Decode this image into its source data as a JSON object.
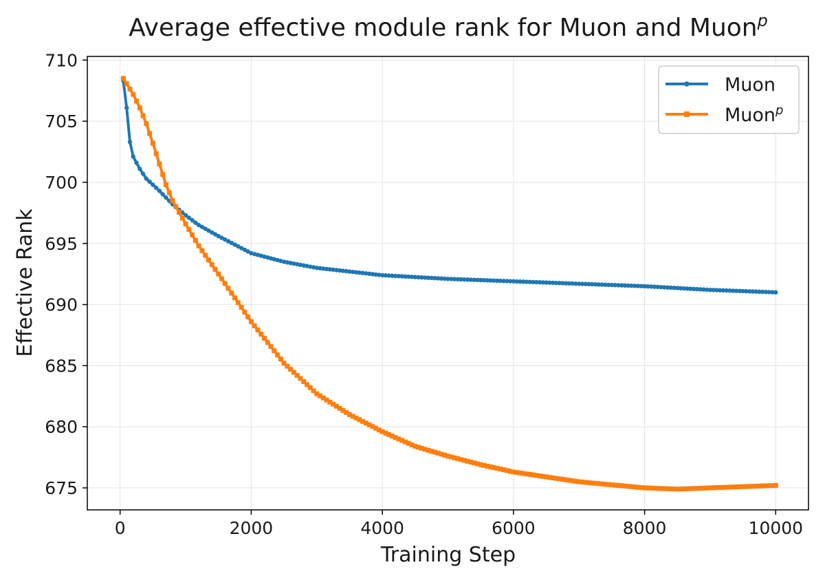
{
  "chart_data": {
    "type": "line",
    "title": "Average effective module rank for Muon and Muon",
    "title_superscript": "p",
    "xlabel": "Training Step",
    "ylabel": "Effective Rank",
    "xlim": [
      -500,
      10500
    ],
    "ylim": [
      673.2,
      710.3
    ],
    "xticks": [
      0,
      2000,
      4000,
      6000,
      8000,
      10000
    ],
    "yticks": [
      675,
      680,
      685,
      690,
      695,
      700,
      705,
      710
    ],
    "grid": true,
    "legend_position": "top-right",
    "series": [
      {
        "name": "Muon",
        "superscript": "",
        "color": "#1f77b4",
        "marker": "circle",
        "points": [
          [
            50,
            708.3
          ],
          [
            100,
            706.1
          ],
          [
            150,
            703.3
          ],
          [
            200,
            702.1
          ],
          [
            300,
            701.1
          ],
          [
            400,
            700.3
          ],
          [
            600,
            699.3
          ],
          [
            800,
            698.2
          ],
          [
            1000,
            697.3
          ],
          [
            1200,
            696.5
          ],
          [
            1500,
            695.6
          ],
          [
            2000,
            694.2
          ],
          [
            2500,
            693.5
          ],
          [
            3000,
            693.0
          ],
          [
            4000,
            692.4
          ],
          [
            5000,
            692.1
          ],
          [
            6000,
            691.9
          ],
          [
            7000,
            691.7
          ],
          [
            8000,
            691.5
          ],
          [
            9000,
            691.2
          ],
          [
            10000,
            691.0
          ]
        ]
      },
      {
        "name": "Muon",
        "superscript": "p",
        "color": "#ff7f0e",
        "marker": "square",
        "points": [
          [
            50,
            708.5
          ],
          [
            200,
            707.2
          ],
          [
            300,
            706.1
          ],
          [
            400,
            704.8
          ],
          [
            500,
            703.2
          ],
          [
            600,
            701.5
          ],
          [
            700,
            699.8
          ],
          [
            800,
            698.5
          ],
          [
            1000,
            696.6
          ],
          [
            1200,
            694.8
          ],
          [
            1500,
            692.5
          ],
          [
            2000,
            688.6
          ],
          [
            2500,
            685.2
          ],
          [
            3000,
            682.7
          ],
          [
            3500,
            681.0
          ],
          [
            4000,
            679.6
          ],
          [
            4500,
            678.4
          ],
          [
            5000,
            677.6
          ],
          [
            5500,
            676.9
          ],
          [
            6000,
            676.3
          ],
          [
            7000,
            675.5
          ],
          [
            8000,
            675.0
          ],
          [
            8500,
            674.9
          ],
          [
            9000,
            675.0
          ],
          [
            9500,
            675.1
          ],
          [
            10000,
            675.2
          ]
        ]
      }
    ]
  }
}
